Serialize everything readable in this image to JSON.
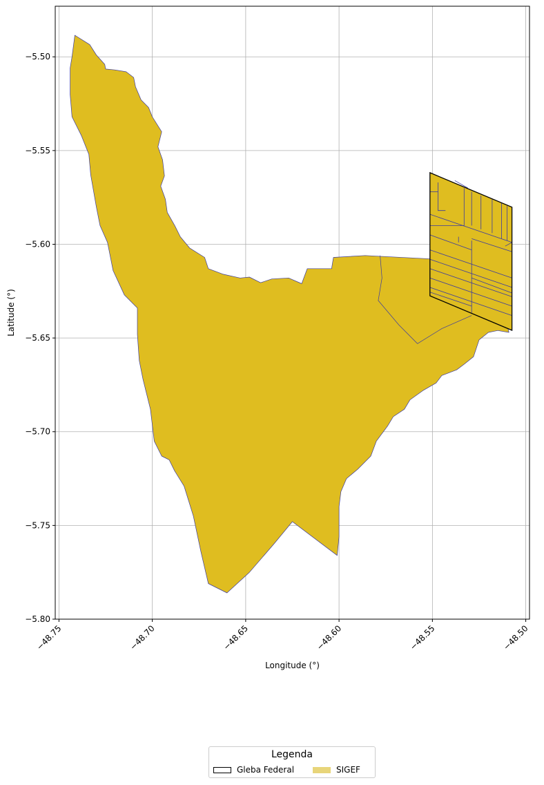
{
  "chart_data": {
    "type": "map",
    "xlabel": "Longitude (°)",
    "ylabel": "Latitude (°)",
    "xlim": [
      -48.752,
      -48.498
    ],
    "ylim": [
      -5.8,
      -5.473
    ],
    "xticks": [
      -48.75,
      -48.7,
      -48.65,
      -48.6,
      -48.55,
      -48.5
    ],
    "xtick_labels": [
      "−48.75",
      "−48.70",
      "−48.65",
      "−48.60",
      "−48.55",
      "−48.50"
    ],
    "yticks": [
      -5.5,
      -5.55,
      -5.6,
      -5.65,
      -5.7,
      -5.75,
      -5.8
    ],
    "ytick_labels": [
      "−5.50",
      "−5.55",
      "−5.60",
      "−5.65",
      "−5.70",
      "−5.75",
      "−5.80"
    ],
    "grid": true,
    "legend_placement": "below the map, centered",
    "colors": {
      "sigef_fill": "#dfbd20",
      "sigef_edge": "#3a3aa0",
      "gleba_edge": "#000000",
      "grid": "#b0b0b0"
    },
    "layers": [
      {
        "name": "SIGEF",
        "polygon": [
          [
            -48.7415,
            -5.4885
          ],
          [
            -48.7335,
            -5.4935
          ],
          [
            -48.73,
            -5.499
          ],
          [
            -48.7255,
            -5.504
          ],
          [
            -48.725,
            -5.5065
          ],
          [
            -48.72,
            -5.507
          ],
          [
            -48.714,
            -5.508
          ],
          [
            -48.71,
            -5.511
          ],
          [
            -48.709,
            -5.516
          ],
          [
            -48.706,
            -5.523
          ],
          [
            -48.702,
            -5.527
          ],
          [
            -48.7,
            -5.532
          ],
          [
            -48.695,
            -5.54
          ],
          [
            -48.697,
            -5.548
          ],
          [
            -48.6945,
            -5.555
          ],
          [
            -48.6935,
            -5.5635
          ],
          [
            -48.6955,
            -5.569
          ],
          [
            -48.693,
            -5.576
          ],
          [
            -48.692,
            -5.583
          ],
          [
            -48.688,
            -5.59
          ],
          [
            -48.685,
            -5.596
          ],
          [
            -48.68,
            -5.602
          ],
          [
            -48.672,
            -5.607
          ],
          [
            -48.67,
            -5.613
          ],
          [
            -48.662,
            -5.616
          ],
          [
            -48.653,
            -5.618
          ],
          [
            -48.648,
            -5.6175
          ],
          [
            -48.642,
            -5.6205
          ],
          [
            -48.636,
            -5.6185
          ],
          [
            -48.627,
            -5.618
          ],
          [
            -48.62,
            -5.621
          ],
          [
            -48.617,
            -5.613
          ],
          [
            -48.604,
            -5.613
          ],
          [
            -48.603,
            -5.607
          ],
          [
            -48.586,
            -5.606
          ],
          [
            -48.547,
            -5.608
          ],
          [
            -48.538,
            -5.619
          ],
          [
            -48.531,
            -5.635
          ],
          [
            -48.522,
            -5.638
          ],
          [
            -48.51,
            -5.643
          ],
          [
            -48.509,
            -5.647
          ],
          [
            -48.515,
            -5.646
          ],
          [
            -48.52,
            -5.647
          ],
          [
            -48.525,
            -5.651
          ],
          [
            -48.528,
            -5.66
          ],
          [
            -48.533,
            -5.664
          ],
          [
            -48.537,
            -5.667
          ],
          [
            -48.545,
            -5.67
          ],
          [
            -48.548,
            -5.674
          ],
          [
            -48.555,
            -5.678
          ],
          [
            -48.562,
            -5.683
          ],
          [
            -48.565,
            -5.688
          ],
          [
            -48.571,
            -5.692
          ],
          [
            -48.574,
            -5.697
          ],
          [
            -48.58,
            -5.705
          ],
          [
            -48.583,
            -5.713
          ],
          [
            -48.59,
            -5.72
          ],
          [
            -48.596,
            -5.725
          ],
          [
            -48.599,
            -5.732
          ],
          [
            -48.6,
            -5.74
          ],
          [
            -48.6,
            -5.748
          ],
          [
            -48.6,
            -5.756
          ],
          [
            -48.601,
            -5.766
          ],
          [
            -48.625,
            -5.748
          ],
          [
            -48.635,
            -5.76
          ],
          [
            -48.648,
            -5.775
          ],
          [
            -48.66,
            -5.786
          ],
          [
            -48.67,
            -5.781
          ],
          [
            -48.674,
            -5.764
          ],
          [
            -48.678,
            -5.745
          ],
          [
            -48.683,
            -5.729
          ],
          [
            -48.688,
            -5.721
          ],
          [
            -48.691,
            -5.715
          ],
          [
            -48.695,
            -5.713
          ],
          [
            -48.699,
            -5.705
          ],
          [
            -48.701,
            -5.688
          ],
          [
            -48.703,
            -5.68
          ],
          [
            -48.705,
            -5.672
          ],
          [
            -48.707,
            -5.662
          ],
          [
            -48.708,
            -5.648
          ],
          [
            -48.708,
            -5.634
          ],
          [
            -48.715,
            -5.627
          ],
          [
            -48.721,
            -5.614
          ],
          [
            -48.724,
            -5.599
          ],
          [
            -48.728,
            -5.59
          ],
          [
            -48.73,
            -5.58
          ],
          [
            -48.733,
            -5.563
          ],
          [
            -48.734,
            -5.552
          ],
          [
            -48.738,
            -5.542
          ],
          [
            -48.743,
            -5.532
          ],
          [
            -48.744,
            -5.52
          ],
          [
            -48.744,
            -5.506
          ],
          [
            -48.743,
            -5.5
          ]
        ],
        "interior_lines": [
          [
            [
              -48.578,
              -5.606
            ],
            [
              -48.577,
              -5.618
            ],
            [
              -48.579,
              -5.63
            ],
            [
              -48.568,
              -5.643
            ],
            [
              -48.558,
              -5.653
            ],
            [
              -48.545,
              -5.645
            ],
            [
              -48.529,
              -5.638
            ]
          ]
        ]
      },
      {
        "name": "Gleba Federal",
        "polygon": [
          [
            -48.5513,
            -5.5618
          ],
          [
            -48.5074,
            -5.5802
          ],
          [
            -48.5074,
            -5.6459
          ],
          [
            -48.5513,
            -5.6275
          ]
        ],
        "parcel_lines": [
          [
            [
              -48.5513,
              -5.572
            ],
            [
              -48.547,
              -5.572
            ]
          ],
          [
            [
              -48.547,
              -5.567
            ],
            [
              -48.547,
              -5.582
            ],
            [
              -48.543,
              -5.582
            ]
          ],
          [
            [
              -48.538,
              -5.566
            ],
            [
              -48.531,
              -5.57
            ]
          ],
          [
            [
              -48.533,
              -5.57
            ],
            [
              -48.533,
              -5.59
            ],
            [
              -48.5513,
              -5.59
            ]
          ],
          [
            [
              -48.529,
              -5.572
            ],
            [
              -48.529,
              -5.59
            ]
          ],
          [
            [
              -48.524,
              -5.574
            ],
            [
              -48.524,
              -5.592
            ]
          ],
          [
            [
              -48.518,
              -5.576
            ],
            [
              -48.518,
              -5.594
            ]
          ],
          [
            [
              -48.513,
              -5.578
            ],
            [
              -48.513,
              -5.597
            ]
          ],
          [
            [
              -48.51,
              -5.5795
            ],
            [
              -48.51,
              -5.598
            ]
          ],
          [
            [
              -48.5513,
              -5.584
            ],
            [
              -48.5074,
              -5.599
            ]
          ],
          [
            [
              -48.5513,
              -5.595
            ],
            [
              -48.529,
              -5.603
            ]
          ],
          [
            [
              -48.529,
              -5.597
            ],
            [
              -48.5074,
              -5.604
            ]
          ],
          [
            [
              -48.5513,
              -5.603
            ],
            [
              -48.5074,
              -5.618
            ]
          ],
          [
            [
              -48.5513,
              -5.608
            ],
            [
              -48.5074,
              -5.623
            ]
          ],
          [
            [
              -48.5513,
              -5.613
            ],
            [
              -48.5074,
              -5.628
            ]
          ],
          [
            [
              -48.5513,
              -5.618
            ],
            [
              -48.5074,
              -5.633
            ]
          ],
          [
            [
              -48.5513,
              -5.623
            ],
            [
              -48.5074,
              -5.638
            ]
          ],
          [
            [
              -48.5513,
              -5.6255
            ],
            [
              -48.529,
              -5.633
            ]
          ],
          [
            [
              -48.529,
              -5.598
            ],
            [
              -48.529,
              -5.6365
            ]
          ],
          [
            [
              -48.529,
              -5.618
            ],
            [
              -48.5074,
              -5.626
            ]
          ],
          [
            [
              -48.5074,
              -5.599
            ],
            [
              -48.511,
              -5.601
            ]
          ],
          [
            [
              -48.536,
              -5.596
            ],
            [
              -48.536,
              -5.599
            ]
          ]
        ]
      }
    ]
  },
  "legend": {
    "title": "Legenda",
    "entries": [
      {
        "label": "Gleba Federal",
        "swatch": "outline",
        "color": "#000000"
      },
      {
        "label": "SIGEF",
        "swatch": "fill",
        "color": "#e8d57a"
      }
    ]
  }
}
